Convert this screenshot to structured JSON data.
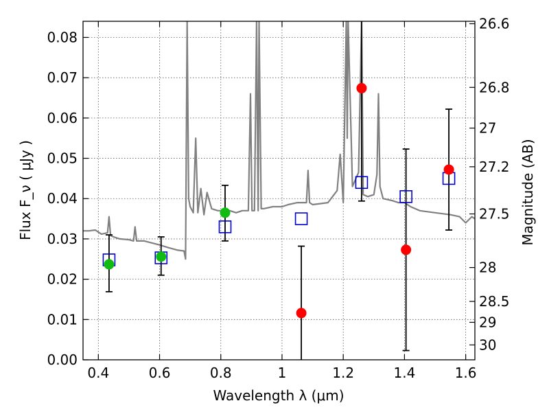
{
  "chart_data": {
    "type": "scatter",
    "title": "",
    "xlabel": "Wavelength  λ (μm)",
    "ylabel": "Flux  F_ν  ( μJy )",
    "ylabel_right": "Magnitude (AB)",
    "xlim": [
      0.35,
      1.63
    ],
    "ylim": [
      0.0,
      0.084
    ],
    "grid": true,
    "x_ticks": [
      0.4,
      0.6,
      0.8,
      1.0,
      1.2,
      1.4,
      1.6
    ],
    "x_tick_labels": [
      "0.4",
      "0.6",
      "0.8",
      "1",
      "1.2",
      "1.4",
      "1.6"
    ],
    "y_ticks": [
      0.0,
      0.01,
      0.02,
      0.03,
      0.04,
      0.05,
      0.06,
      0.07,
      0.08
    ],
    "y_tick_labels": [
      "0.00",
      "0.01",
      "0.02",
      "0.03",
      "0.04",
      "0.05",
      "0.06",
      "0.07",
      "0.08"
    ],
    "right_ticks": [
      {
        "label": "26.6",
        "flux": 0.0834
      },
      {
        "label": "26.8",
        "flux": 0.0676
      },
      {
        "label": "27",
        "flux": 0.0575
      },
      {
        "label": "27.2",
        "flux": 0.0479
      },
      {
        "label": "27.5",
        "flux": 0.0362
      },
      {
        "label": "28",
        "flux": 0.0229
      },
      {
        "label": "28.5",
        "flux": 0.0145
      },
      {
        "label": "29",
        "flux": 0.0093
      },
      {
        "label": "30",
        "flux": 0.0037
      }
    ],
    "colors": {
      "spectrum": "#808080",
      "green_points": "#11bb11",
      "red_points": "#ff0000",
      "model_squares": "#0000cc",
      "errorbars": "#000000"
    },
    "series": [
      {
        "marker": "square-open",
        "x": [
          0.435,
          0.605,
          0.814,
          1.063,
          1.26,
          1.405,
          1.545
        ],
        "y": [
          0.0248,
          0.0253,
          0.033,
          0.035,
          0.044,
          0.0405,
          0.045
        ]
      },
      {
        "marker": "circle-filled",
        "x": [
          0.435,
          0.605,
          0.814
        ],
        "y": [
          0.0237,
          0.0256,
          0.0365
        ],
        "err_low": [
          0.0068,
          0.0046,
          0.007
        ],
        "err_high": [
          0.0073,
          0.0049,
          0.0068
        ]
      },
      {
        "marker": "circle-filled",
        "x": [
          1.063,
          1.26,
          1.405,
          1.545
        ],
        "y": [
          0.0116,
          0.0674,
          0.0273,
          0.0472
        ],
        "err_low": [
          0.0116,
          0.028,
          0.025,
          0.015
        ],
        "err_high": [
          0.0166,
          0.018,
          0.025,
          0.015
        ]
      },
      {
        "style": "line",
        "x": [
          0.35,
          0.37,
          0.39,
          0.41,
          0.43,
          0.435,
          0.44,
          0.45,
          0.47,
          0.5,
          0.515,
          0.52,
          0.525,
          0.55,
          0.6,
          0.63,
          0.66,
          0.68,
          0.685,
          0.69,
          0.695,
          0.7,
          0.71,
          0.718,
          0.725,
          0.735,
          0.745,
          0.755,
          0.77,
          0.79,
          0.81,
          0.83,
          0.85,
          0.87,
          0.89,
          0.897,
          0.902,
          0.91,
          0.917,
          0.922,
          0.925,
          0.932,
          0.94,
          0.97,
          1.0,
          1.02,
          1.05,
          1.08,
          1.085,
          1.09,
          1.1,
          1.15,
          1.18,
          1.19,
          1.2,
          1.21,
          1.213,
          1.216,
          1.23,
          1.25,
          1.26,
          1.265,
          1.28,
          1.3,
          1.31,
          1.315,
          1.32,
          1.33,
          1.36,
          1.38,
          1.4,
          1.41,
          1.42,
          1.45,
          1.5,
          1.55,
          1.58,
          1.6,
          1.62,
          1.63
        ],
        "y": [
          0.032,
          0.032,
          0.0322,
          0.0312,
          0.0315,
          0.0355,
          0.0308,
          0.0305,
          0.03,
          0.0298,
          0.0295,
          0.033,
          0.0295,
          0.0295,
          0.0285,
          0.0278,
          0.0272,
          0.027,
          0.025,
          0.084,
          0.04,
          0.038,
          0.0365,
          0.055,
          0.0365,
          0.0425,
          0.036,
          0.0415,
          0.0375,
          0.037,
          0.037,
          0.037,
          0.0365,
          0.037,
          0.037,
          0.066,
          0.037,
          0.037,
          0.084,
          0.037,
          0.084,
          0.0375,
          0.0375,
          0.038,
          0.038,
          0.0385,
          0.039,
          0.039,
          0.047,
          0.039,
          0.0385,
          0.039,
          0.042,
          0.051,
          0.039,
          0.084,
          0.055,
          0.084,
          0.043,
          0.0465,
          0.084,
          0.041,
          0.0405,
          0.041,
          0.046,
          0.066,
          0.043,
          0.04,
          0.0395,
          0.039,
          0.039,
          0.0385,
          0.038,
          0.037,
          0.0365,
          0.036,
          0.0355,
          0.034,
          0.0355,
          0.035
        ]
      }
    ]
  }
}
